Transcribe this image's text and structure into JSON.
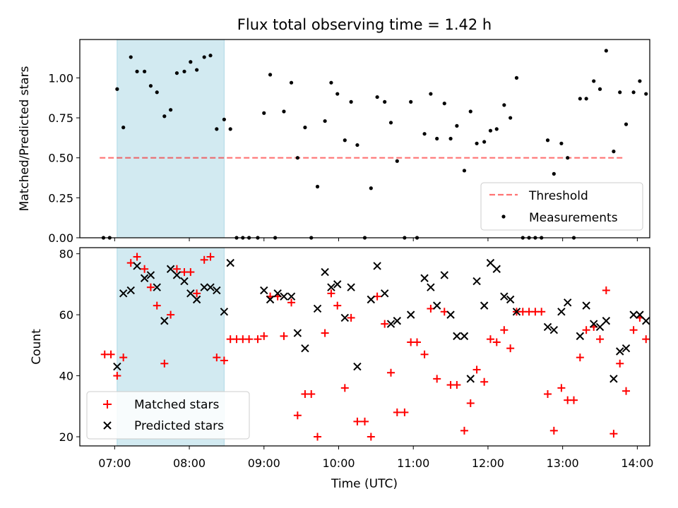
{
  "title": "Flux total observing time = 1.42 h",
  "chart_data": [
    {
      "type": "scatter",
      "panel": "top",
      "title": "Flux total observing time = 1.42 h",
      "xlabel": "",
      "ylabel": "Matched/Predicted stars",
      "xlim": [
        "06:32",
        "14:10"
      ],
      "ylim": [
        0,
        1.24
      ],
      "y_ticks": [
        0.0,
        0.25,
        0.5,
        0.75,
        1.0
      ],
      "y_tick_labels": [
        "0.00",
        "0.25",
        "0.50",
        "0.75",
        "1.00"
      ],
      "shaded_span": {
        "start": "07:02",
        "end": "08:28",
        "color": "#add8e6"
      },
      "threshold": {
        "name": "Threshold",
        "y": 0.5,
        "x_start": "06:48",
        "x_end": "13:48",
        "color": "#ff0000",
        "style": "dashed"
      },
      "legend": {
        "location": "bottom-right",
        "entries": [
          "Threshold",
          "Measurements"
        ]
      },
      "series": [
        {
          "name": "Measurements",
          "color": "#000000",
          "marker": "dot",
          "points": [
            [
              "06:51",
              0
            ],
            [
              "06:56",
              0
            ],
            [
              "07:02",
              0.93
            ],
            [
              "07:07",
              0.69
            ],
            [
              "07:13",
              1.13
            ],
            [
              "07:18",
              1.04
            ],
            [
              "07:24",
              1.04
            ],
            [
              "07:29",
              0.95
            ],
            [
              "07:34",
              0.91
            ],
            [
              "07:40",
              0.76
            ],
            [
              "07:45",
              0.8
            ],
            [
              "07:50",
              1.03
            ],
            [
              "07:56",
              1.04
            ],
            [
              "08:01",
              1.1
            ],
            [
              "08:06",
              1.05
            ],
            [
              "08:12",
              1.13
            ],
            [
              "08:17",
              1.14
            ],
            [
              "08:22",
              0.68
            ],
            [
              "08:28",
              0.74
            ],
            [
              "08:33",
              0.68
            ],
            [
              "08:38",
              0
            ],
            [
              "08:43",
              0
            ],
            [
              "08:48",
              0
            ],
            [
              "08:55",
              0
            ],
            [
              "09:00",
              0.78
            ],
            [
              "09:05",
              1.02
            ],
            [
              "09:09",
              0
            ],
            [
              "09:16",
              0.79
            ],
            [
              "09:22",
              0.97
            ],
            [
              "09:27",
              0.5
            ],
            [
              "09:33",
              0.69
            ],
            [
              "09:38",
              0
            ],
            [
              "09:43",
              0.32
            ],
            [
              "09:49",
              0.73
            ],
            [
              "09:54",
              0.97
            ],
            [
              "09:59",
              0.9
            ],
            [
              "10:05",
              0.61
            ],
            [
              "10:10",
              0.85
            ],
            [
              "10:15",
              0.58
            ],
            [
              "10:21",
              0
            ],
            [
              "10:26",
              0.31
            ],
            [
              "10:31",
              0.88
            ],
            [
              "10:37",
              0.85
            ],
            [
              "10:42",
              0.72
            ],
            [
              "10:47",
              0.48
            ],
            [
              "10:53",
              0
            ],
            [
              "10:58",
              0.85
            ],
            [
              "11:03",
              0
            ],
            [
              "11:09",
              0.65
            ],
            [
              "11:14",
              0.9
            ],
            [
              "11:19",
              0.62
            ],
            [
              "11:25",
              0.84
            ],
            [
              "11:30",
              0.62
            ],
            [
              "11:35",
              0.7
            ],
            [
              "11:41",
              0.42
            ],
            [
              "11:46",
              0.79
            ],
            [
              "11:51",
              0.59
            ],
            [
              "11:57",
              0.6
            ],
            [
              "12:02",
              0.67
            ],
            [
              "12:07",
              0.68
            ],
            [
              "12:13",
              0.83
            ],
            [
              "12:18",
              0.75
            ],
            [
              "12:23",
              1.0
            ],
            [
              "12:28",
              0
            ],
            [
              "12:33",
              0
            ],
            [
              "12:38",
              0
            ],
            [
              "12:43",
              0
            ],
            [
              "12:48",
              0.61
            ],
            [
              "12:53",
              0.4
            ],
            [
              "12:59",
              0.59
            ],
            [
              "13:04",
              0.5
            ],
            [
              "13:09",
              0
            ],
            [
              "13:14",
              0.87
            ],
            [
              "13:19",
              0.87
            ],
            [
              "13:25",
              0.98
            ],
            [
              "13:30",
              0.93
            ],
            [
              "13:35",
              1.17
            ],
            [
              "13:41",
              0.54
            ],
            [
              "13:46",
              0.91
            ],
            [
              "13:51",
              0.71
            ],
            [
              "13:57",
              0.91
            ],
            [
              "14:02",
              0.98
            ],
            [
              "14:07",
              0.9
            ]
          ]
        }
      ]
    },
    {
      "type": "scatter",
      "panel": "bottom",
      "xlabel": "Time (UTC)",
      "ylabel": "Count",
      "xlim": [
        "06:32",
        "14:10"
      ],
      "ylim": [
        17,
        82
      ],
      "x_tick_labels": [
        "07:00",
        "08:00",
        "09:00",
        "10:00",
        "11:00",
        "12:00",
        "13:00",
        "14:00"
      ],
      "y_ticks": [
        20,
        40,
        60,
        80
      ],
      "y_tick_labels": [
        "20",
        "40",
        "60",
        "80"
      ],
      "shaded_span": {
        "start": "07:02",
        "end": "08:28",
        "color": "#add8e6"
      },
      "legend": {
        "location": "bottom-left",
        "entries": [
          "Matched stars",
          "Predicted stars"
        ]
      },
      "series": [
        {
          "name": "Matched stars",
          "color": "#ff0000",
          "marker": "plus",
          "points": [
            [
              "06:52",
              47
            ],
            [
              "06:57",
              47
            ],
            [
              "07:02",
              40
            ],
            [
              "07:07",
              46
            ],
            [
              "07:13",
              77
            ],
            [
              "07:18",
              79
            ],
            [
              "07:24",
              75
            ],
            [
              "07:29",
              69
            ],
            [
              "07:34",
              63
            ],
            [
              "07:40",
              44
            ],
            [
              "07:45",
              60
            ],
            [
              "07:50",
              75
            ],
            [
              "07:56",
              74
            ],
            [
              "08:01",
              74
            ],
            [
              "08:06",
              67
            ],
            [
              "08:12",
              78
            ],
            [
              "08:17",
              79
            ],
            [
              "08:22",
              46
            ],
            [
              "08:28",
              45
            ],
            [
              "08:33",
              52
            ],
            [
              "08:38",
              52
            ],
            [
              "08:43",
              52
            ],
            [
              "08:48",
              52
            ],
            [
              "08:55",
              52
            ],
            [
              "09:00",
              53
            ],
            [
              "09:05",
              66
            ],
            [
              "09:11",
              66
            ],
            [
              "09:16",
              53
            ],
            [
              "09:22",
              64
            ],
            [
              "09:27",
              27
            ],
            [
              "09:33",
              34
            ],
            [
              "09:38",
              34
            ],
            [
              "09:43",
              20
            ],
            [
              "09:49",
              54
            ],
            [
              "09:54",
              67
            ],
            [
              "09:59",
              63
            ],
            [
              "10:05",
              36
            ],
            [
              "10:10",
              59
            ],
            [
              "10:15",
              25
            ],
            [
              "10:21",
              25
            ],
            [
              "10:26",
              20
            ],
            [
              "10:31",
              66
            ],
            [
              "10:37",
              57
            ],
            [
              "10:42",
              41
            ],
            [
              "10:47",
              28
            ],
            [
              "10:53",
              28
            ],
            [
              "10:58",
              51
            ],
            [
              "11:03",
              51
            ],
            [
              "11:09",
              47
            ],
            [
              "11:14",
              62
            ],
            [
              "11:19",
              39
            ],
            [
              "11:25",
              61
            ],
            [
              "11:30",
              37
            ],
            [
              "11:35",
              37
            ],
            [
              "11:41",
              22
            ],
            [
              "11:46",
              31
            ],
            [
              "11:51",
              42
            ],
            [
              "11:57",
              38
            ],
            [
              "12:02",
              52
            ],
            [
              "12:07",
              51
            ],
            [
              "12:13",
              55
            ],
            [
              "12:18",
              49
            ],
            [
              "12:23",
              61
            ],
            [
              "12:28",
              61
            ],
            [
              "12:33",
              61
            ],
            [
              "12:38",
              61
            ],
            [
              "12:43",
              61
            ],
            [
              "12:48",
              34
            ],
            [
              "12:53",
              22
            ],
            [
              "12:59",
              36
            ],
            [
              "13:04",
              32
            ],
            [
              "13:09",
              32
            ],
            [
              "13:14",
              46
            ],
            [
              "13:19",
              55
            ],
            [
              "13:25",
              56
            ],
            [
              "13:30",
              52
            ],
            [
              "13:35",
              68
            ],
            [
              "13:41",
              21
            ],
            [
              "13:46",
              44
            ],
            [
              "13:51",
              35
            ],
            [
              "13:57",
              55
            ],
            [
              "14:02",
              59
            ],
            [
              "14:07",
              52
            ]
          ]
        },
        {
          "name": "Predicted stars",
          "color": "#000000",
          "marker": "x",
          "points": [
            [
              "07:02",
              43
            ],
            [
              "07:07",
              67
            ],
            [
              "07:13",
              68
            ],
            [
              "07:18",
              76
            ],
            [
              "07:24",
              72
            ],
            [
              "07:29",
              73
            ],
            [
              "07:34",
              69
            ],
            [
              "07:40",
              58
            ],
            [
              "07:45",
              75
            ],
            [
              "07:50",
              73
            ],
            [
              "07:56",
              71
            ],
            [
              "08:01",
              67
            ],
            [
              "08:06",
              65
            ],
            [
              "08:12",
              69
            ],
            [
              "08:17",
              69
            ],
            [
              "08:22",
              68
            ],
            [
              "08:28",
              61
            ],
            [
              "08:33",
              77
            ],
            [
              "09:00",
              68
            ],
            [
              "09:05",
              65
            ],
            [
              "09:11",
              67
            ],
            [
              "09:16",
              66
            ],
            [
              "09:22",
              66
            ],
            [
              "09:27",
              54
            ],
            [
              "09:33",
              49
            ],
            [
              "09:43",
              62
            ],
            [
              "09:49",
              74
            ],
            [
              "09:54",
              69
            ],
            [
              "09:59",
              70
            ],
            [
              "10:05",
              59
            ],
            [
              "10:10",
              69
            ],
            [
              "10:15",
              43
            ],
            [
              "10:26",
              65
            ],
            [
              "10:31",
              76
            ],
            [
              "10:37",
              67
            ],
            [
              "10:42",
              57
            ],
            [
              "10:47",
              58
            ],
            [
              "10:58",
              60
            ],
            [
              "11:09",
              72
            ],
            [
              "11:14",
              69
            ],
            [
              "11:19",
              63
            ],
            [
              "11:25",
              73
            ],
            [
              "11:30",
              60
            ],
            [
              "11:35",
              53
            ],
            [
              "11:41",
              53
            ],
            [
              "11:46",
              39
            ],
            [
              "11:51",
              71
            ],
            [
              "11:57",
              63
            ],
            [
              "12:02",
              77
            ],
            [
              "12:07",
              75
            ],
            [
              "12:13",
              66
            ],
            [
              "12:18",
              65
            ],
            [
              "12:23",
              61
            ],
            [
              "12:48",
              56
            ],
            [
              "12:53",
              55
            ],
            [
              "12:59",
              61
            ],
            [
              "13:04",
              64
            ],
            [
              "13:14",
              53
            ],
            [
              "13:19",
              63
            ],
            [
              "13:25",
              57
            ],
            [
              "13:30",
              56
            ],
            [
              "13:35",
              58
            ],
            [
              "13:41",
              39
            ],
            [
              "13:46",
              48
            ],
            [
              "13:51",
              49
            ],
            [
              "13:57",
              60
            ],
            [
              "14:02",
              60
            ],
            [
              "14:07",
              58
            ]
          ]
        }
      ]
    }
  ]
}
